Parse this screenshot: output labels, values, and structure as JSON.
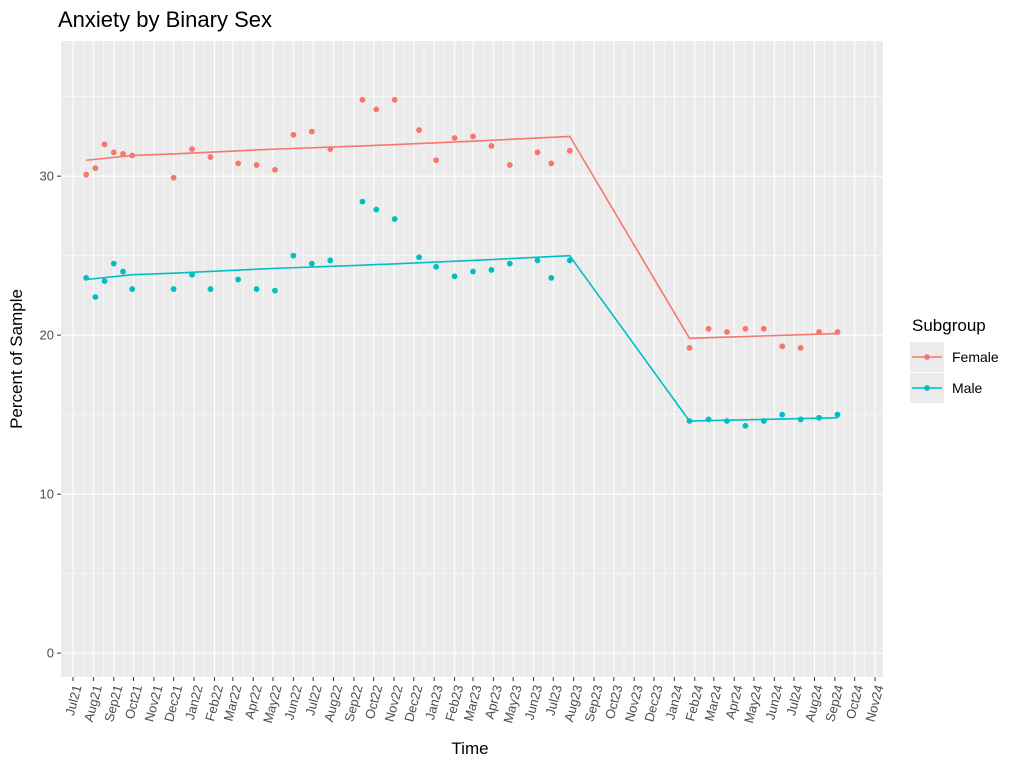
{
  "chart_data": {
    "type": "line",
    "title": "Anxiety by Binary Sex",
    "xlabel": "Time",
    "ylabel": "Percent of Sample",
    "ylim": [
      -1.5,
      38.5
    ],
    "yticks": [
      0,
      10,
      20,
      30
    ],
    "grid": true,
    "legend": {
      "title": "Subgroup",
      "placement": "right"
    },
    "x_tick_labels": [
      "Jul21",
      "Aug21",
      "Sep21",
      "Oct21",
      "Nov21",
      "Dec21",
      "Jan22",
      "Feb22",
      "Mar22",
      "Apr22",
      "May22",
      "Jun22",
      "Jul22",
      "Aug22",
      "Sep22",
      "Oct22",
      "Nov22",
      "Dec22",
      "Jan23",
      "Feb23",
      "Mar23",
      "Apr23",
      "May23",
      "Jun23",
      "Jul23",
      "Aug23",
      "Sep23",
      "Oct23",
      "Nov23",
      "Dec23",
      "Jan24",
      "Feb24",
      "Mar24",
      "Apr24",
      "May24",
      "Jun24",
      "Jul24",
      "Aug24",
      "Sep24",
      "Oct24",
      "Nov24"
    ],
    "series": [
      {
        "name": "Female",
        "color": "#F8766D",
        "points": [
          [
            "2021-07-21",
            30.1
          ],
          [
            "2021-08-04",
            30.5
          ],
          [
            "2021-08-18",
            32.0
          ],
          [
            "2021-09-01",
            31.5
          ],
          [
            "2021-09-15",
            31.4
          ],
          [
            "2021-09-29",
            31.3
          ],
          [
            "2021-12-01",
            29.9
          ],
          [
            "2021-12-29",
            31.7
          ],
          [
            "2022-01-26",
            31.2
          ],
          [
            "2022-03-09",
            30.8
          ],
          [
            "2022-04-06",
            30.7
          ],
          [
            "2022-05-04",
            30.4
          ],
          [
            "2022-06-01",
            32.6
          ],
          [
            "2022-06-29",
            32.8
          ],
          [
            "2022-07-27",
            31.7
          ],
          [
            "2022-09-14",
            34.8
          ],
          [
            "2022-10-05",
            34.2
          ],
          [
            "2022-11-02",
            34.8
          ],
          [
            "2022-12-09",
            32.9
          ],
          [
            "2023-01-04",
            31.0
          ],
          [
            "2023-02-01",
            32.4
          ],
          [
            "2023-03-01",
            32.5
          ],
          [
            "2023-03-29",
            31.9
          ],
          [
            "2023-04-26",
            30.7
          ],
          [
            "2023-06-07",
            31.5
          ],
          [
            "2023-06-28",
            30.8
          ],
          [
            "2023-07-26",
            31.6
          ],
          [
            "2024-01-24",
            19.2
          ],
          [
            "2024-02-22",
            20.4
          ],
          [
            "2024-03-21",
            20.2
          ],
          [
            "2024-04-18",
            20.4
          ],
          [
            "2024-05-16",
            20.4
          ],
          [
            "2024-06-13",
            19.3
          ],
          [
            "2024-07-11",
            19.2
          ],
          [
            "2024-08-08",
            20.2
          ],
          [
            "2024-09-05",
            20.2
          ]
        ],
        "trend": [
          [
            "2021-07-21",
            31.0
          ],
          [
            "2021-09-29",
            31.3
          ],
          [
            "2021-12-01",
            31.4
          ],
          [
            "2022-05-04",
            31.7
          ],
          [
            "2022-09-14",
            31.9
          ],
          [
            "2023-03-01",
            32.2
          ],
          [
            "2023-07-26",
            32.5
          ],
          [
            "2024-01-24",
            19.8
          ],
          [
            "2024-09-05",
            20.1
          ]
        ]
      },
      {
        "name": "Male",
        "color": "#00BFC4",
        "points": [
          [
            "2021-07-21",
            23.6
          ],
          [
            "2021-08-04",
            22.4
          ],
          [
            "2021-08-18",
            23.4
          ],
          [
            "2021-09-01",
            24.5
          ],
          [
            "2021-09-15",
            24.0
          ],
          [
            "2021-09-29",
            22.9
          ],
          [
            "2021-12-01",
            22.9
          ],
          [
            "2021-12-29",
            23.8
          ],
          [
            "2022-01-26",
            22.9
          ],
          [
            "2022-03-09",
            23.5
          ],
          [
            "2022-04-06",
            22.9
          ],
          [
            "2022-05-04",
            22.8
          ],
          [
            "2022-06-01",
            25.0
          ],
          [
            "2022-06-29",
            24.5
          ],
          [
            "2022-07-27",
            24.7
          ],
          [
            "2022-09-14",
            28.4
          ],
          [
            "2022-10-05",
            27.9
          ],
          [
            "2022-11-02",
            27.3
          ],
          [
            "2022-12-09",
            24.9
          ],
          [
            "2023-01-04",
            24.3
          ],
          [
            "2023-02-01",
            23.7
          ],
          [
            "2023-03-01",
            24.0
          ],
          [
            "2023-03-29",
            24.1
          ],
          [
            "2023-04-26",
            24.5
          ],
          [
            "2023-06-07",
            24.7
          ],
          [
            "2023-06-28",
            23.6
          ],
          [
            "2023-07-26",
            24.7
          ],
          [
            "2024-01-24",
            14.6
          ],
          [
            "2024-02-22",
            14.7
          ],
          [
            "2024-03-21",
            14.6
          ],
          [
            "2024-04-18",
            14.3
          ],
          [
            "2024-05-16",
            14.6
          ],
          [
            "2024-06-13",
            15.0
          ],
          [
            "2024-07-11",
            14.7
          ],
          [
            "2024-08-08",
            14.8
          ],
          [
            "2024-09-05",
            15.0
          ]
        ],
        "trend": [
          [
            "2021-07-21",
            23.5
          ],
          [
            "2021-09-29",
            23.8
          ],
          [
            "2021-12-01",
            23.9
          ],
          [
            "2022-05-04",
            24.2
          ],
          [
            "2022-09-14",
            24.4
          ],
          [
            "2023-03-01",
            24.7
          ],
          [
            "2023-07-26",
            25.0
          ],
          [
            "2024-01-24",
            14.6
          ],
          [
            "2024-09-05",
            14.8
          ]
        ]
      }
    ]
  }
}
